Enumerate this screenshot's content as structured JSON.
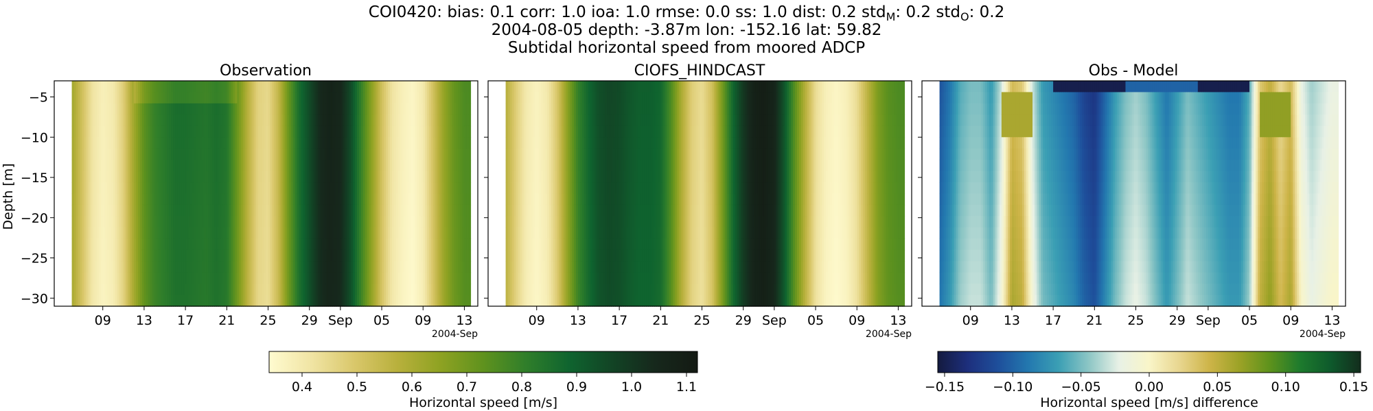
{
  "figure": {
    "title_line1_prefix": "COI0420: bias: 0.1  corr: 1.0  ioa: 1.0  rmse: 0.0  ss: 1.0  dist: 0.2  std",
    "std_m_sub": "M",
    "std_m_value": ": 0.2  std",
    "std_o_sub": "O",
    "std_o_value": ": 0.2",
    "title_line2": "2004-08-05 depth: -3.87m lon: -152.16 lat: 59.82",
    "title_line3": "Subtidal horizontal speed from moored ADCP"
  },
  "chart_data": [
    {
      "type": "heatmap",
      "title": "Observation",
      "ylabel": "Depth [m]",
      "xlabel": "",
      "x_ticks": [
        "09",
        "13",
        "17",
        "21",
        "25",
        "29",
        "Sep",
        "05",
        "09",
        "13"
      ],
      "x_offset_label": "2004-Sep",
      "y_ticks": [
        -5,
        -10,
        -15,
        -20,
        -25,
        -30
      ],
      "ylim": [
        -31,
        -3
      ],
      "x_range_days": [
        6,
        44.5
      ],
      "depth_surface_layer": [
        -3,
        -5
      ],
      "speed_time_profile": [
        [
          6,
          0.62
        ],
        [
          7,
          0.52
        ],
        [
          8,
          0.42
        ],
        [
          9,
          0.38
        ],
        [
          10,
          0.4
        ],
        [
          11,
          0.48
        ],
        [
          12,
          0.62
        ],
        [
          13,
          0.74
        ],
        [
          14,
          0.8
        ],
        [
          15,
          0.83
        ],
        [
          16,
          0.86
        ],
        [
          17,
          0.86
        ],
        [
          18,
          0.85
        ],
        [
          19,
          0.84
        ],
        [
          20,
          0.86
        ],
        [
          21,
          0.84
        ],
        [
          22,
          0.72
        ],
        [
          23,
          0.58
        ],
        [
          24,
          0.47
        ],
        [
          25,
          0.45
        ],
        [
          26,
          0.55
        ],
        [
          27,
          0.72
        ],
        [
          28,
          0.86
        ],
        [
          29,
          0.95
        ],
        [
          30,
          1.04
        ],
        [
          31,
          1.07
        ],
        [
          32,
          1.05
        ],
        [
          33,
          0.95
        ],
        [
          34,
          0.8
        ],
        [
          35,
          0.66
        ],
        [
          36,
          0.52
        ],
        [
          37,
          0.42
        ],
        [
          38,
          0.38
        ],
        [
          39,
          0.36
        ],
        [
          40,
          0.4
        ],
        [
          41,
          0.52
        ],
        [
          42,
          0.64
        ],
        [
          43,
          0.72
        ],
        [
          44,
          0.76
        ]
      ],
      "colorbar": {
        "label": "Horizontal speed [m/s]",
        "ticks": [
          0.4,
          0.5,
          0.6,
          0.7,
          0.8,
          0.9,
          1.0,
          1.1
        ],
        "range": [
          0.34,
          1.12
        ]
      }
    },
    {
      "type": "heatmap",
      "title": "CIOFS_HINDCAST",
      "xlabel": "",
      "x_ticks": [
        "09",
        "13",
        "17",
        "21",
        "25",
        "29",
        "Sep",
        "05",
        "09",
        "13"
      ],
      "x_offset_label": "2004-Sep",
      "ylim": [
        -31,
        -3
      ],
      "x_range_days": [
        6,
        44.5
      ],
      "speed_time_profile": [
        [
          6,
          0.58
        ],
        [
          7,
          0.48
        ],
        [
          8,
          0.4
        ],
        [
          9,
          0.37
        ],
        [
          10,
          0.4
        ],
        [
          11,
          0.5
        ],
        [
          12,
          0.66
        ],
        [
          13,
          0.8
        ],
        [
          14,
          0.88
        ],
        [
          15,
          0.94
        ],
        [
          16,
          0.96
        ],
        [
          17,
          0.95
        ],
        [
          18,
          0.92
        ],
        [
          19,
          0.9
        ],
        [
          20,
          0.9
        ],
        [
          21,
          0.88
        ],
        [
          22,
          0.76
        ],
        [
          23,
          0.6
        ],
        [
          24,
          0.48
        ],
        [
          25,
          0.44
        ],
        [
          26,
          0.52
        ],
        [
          27,
          0.7
        ],
        [
          28,
          0.88
        ],
        [
          29,
          1.0
        ],
        [
          30,
          1.08
        ],
        [
          31,
          1.1
        ],
        [
          32,
          1.06
        ],
        [
          33,
          0.92
        ],
        [
          34,
          0.74
        ],
        [
          35,
          0.58
        ],
        [
          36,
          0.44
        ],
        [
          37,
          0.38
        ],
        [
          38,
          0.36
        ],
        [
          39,
          0.38
        ],
        [
          40,
          0.44
        ],
        [
          41,
          0.56
        ],
        [
          42,
          0.68
        ],
        [
          43,
          0.74
        ],
        [
          44,
          0.76
        ]
      ],
      "colorbar": {
        "label": "Horizontal speed [m/s]",
        "ticks": [
          0.4,
          0.5,
          0.6,
          0.7,
          0.8,
          0.9,
          1.0,
          1.1
        ],
        "range": [
          0.34,
          1.12
        ]
      }
    },
    {
      "type": "heatmap",
      "title": "Obs - Model",
      "xlabel": "",
      "x_ticks": [
        "09",
        "13",
        "17",
        "21",
        "25",
        "29",
        "Sep",
        "05",
        "09",
        "13"
      ],
      "x_offset_label": "2004-Sep",
      "ylim": [
        -31,
        -3
      ],
      "x_range_days": [
        6,
        44.5
      ],
      "diff_time_profile": [
        [
          6,
          -0.11
        ],
        [
          7,
          -0.09
        ],
        [
          8,
          -0.06
        ],
        [
          9,
          -0.05
        ],
        [
          10,
          -0.05
        ],
        [
          11,
          -0.07
        ],
        [
          12,
          -0.03
        ],
        [
          13,
          0.04
        ],
        [
          14,
          0.03
        ],
        [
          15,
          -0.03
        ],
        [
          16,
          -0.07
        ],
        [
          17,
          -0.08
        ],
        [
          18,
          -0.09
        ],
        [
          19,
          -0.1
        ],
        [
          20,
          -0.12
        ],
        [
          21,
          -0.13
        ],
        [
          22,
          -0.1
        ],
        [
          23,
          -0.07
        ],
        [
          24,
          -0.05
        ],
        [
          25,
          -0.04
        ],
        [
          26,
          -0.05
        ],
        [
          27,
          -0.07
        ],
        [
          28,
          -0.09
        ],
        [
          29,
          -0.07
        ],
        [
          30,
          -0.05
        ],
        [
          31,
          -0.06
        ],
        [
          32,
          -0.07
        ],
        [
          33,
          -0.08
        ],
        [
          34,
          -0.09
        ],
        [
          35,
          -0.09
        ],
        [
          36,
          -0.06
        ],
        [
          37,
          0.03
        ],
        [
          38,
          0.05
        ],
        [
          39,
          0.02
        ],
        [
          40,
          0.04
        ],
        [
          41,
          -0.02
        ],
        [
          42,
          -0.04
        ],
        [
          43,
          -0.03
        ],
        [
          44,
          -0.02
        ]
      ],
      "diff_surface_layer": -0.15,
      "colorbar": {
        "label": "Horizontal speed [m/s] difference",
        "ticks": [
          -0.15,
          -0.1,
          -0.05,
          0.0,
          0.05,
          0.1,
          0.15
        ],
        "tick_labels": [
          "−0.15",
          "−0.10",
          "−0.05",
          "0.00",
          "0.05",
          "0.10",
          "0.15"
        ],
        "range": [
          -0.155,
          0.155
        ]
      }
    }
  ],
  "colors": {
    "speed_cmap": [
      "#fffbd0",
      "#f0e4a3",
      "#d9c76a",
      "#b8b03c",
      "#8ea222",
      "#5f921e",
      "#2f7e2a",
      "#0f642f",
      "#124425",
      "#16281c",
      "#141a13"
    ],
    "diff_cmap": [
      "#141a3f",
      "#1d2f7d",
      "#1e4f9b",
      "#2378af",
      "#3b9fb4",
      "#8dc6c5",
      "#e8f1e6",
      "#f9f5c8",
      "#e8d68f",
      "#cdb448",
      "#9ba226",
      "#5d921c",
      "#1d7a2d",
      "#0e5a2c",
      "#132d1d"
    ]
  }
}
